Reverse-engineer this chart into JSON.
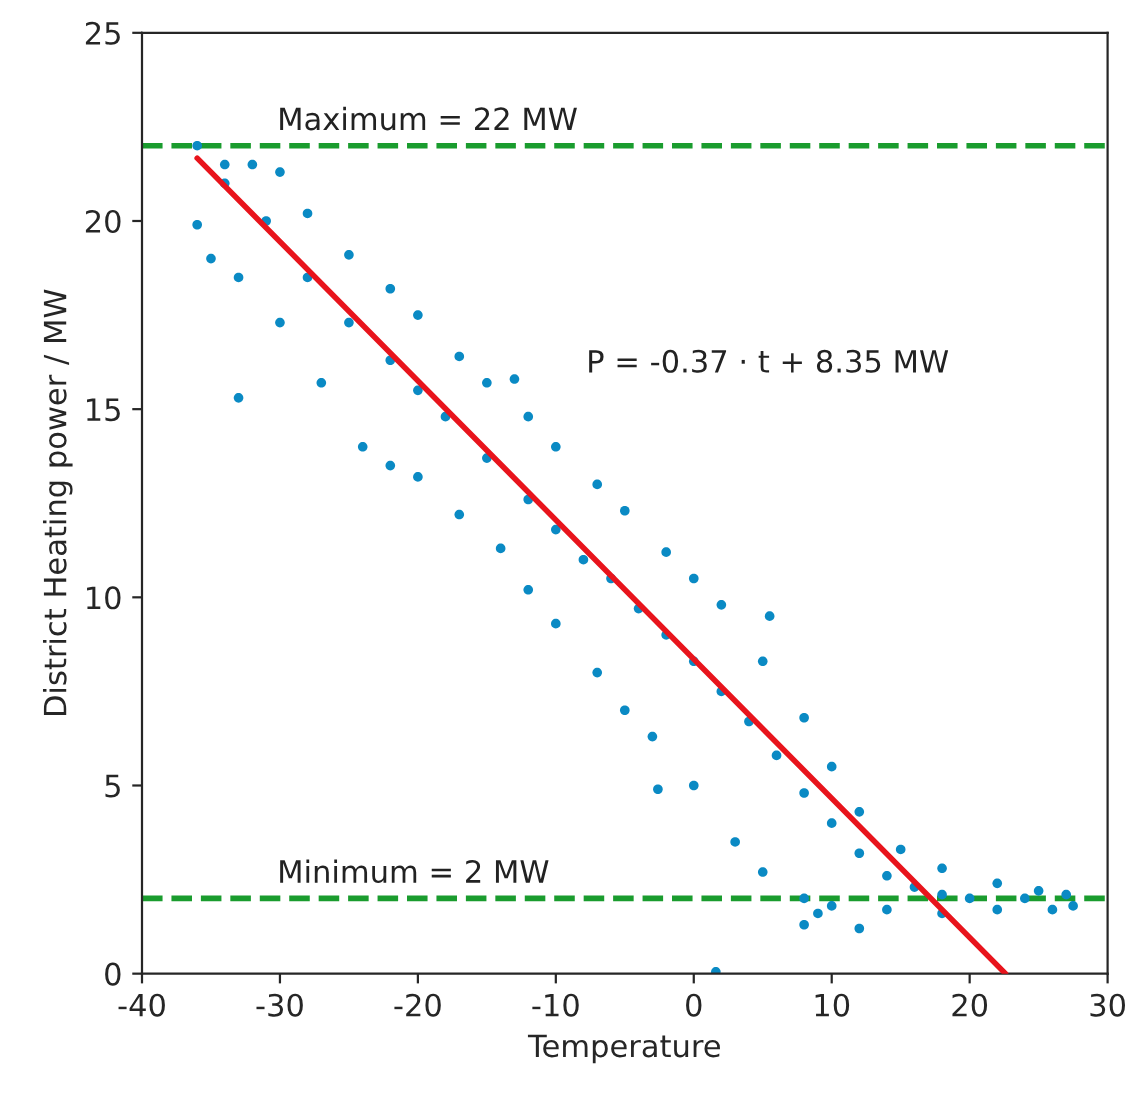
{
  "chart_data": {
    "type": "scatter",
    "xlabel": "Temperature",
    "ylabel": "District Heating power / MW",
    "xlim": [
      -40,
      30
    ],
    "xticks": [
      -40,
      -30,
      -20,
      -10,
      0,
      10,
      20,
      30
    ],
    "ylim": [
      0,
      25
    ],
    "yticks": [
      0,
      5,
      10,
      15,
      20,
      25
    ],
    "grid": false,
    "legend": false,
    "series": [
      {
        "marker": "circle",
        "color": "#0a8ac4",
        "x": [
          -36,
          -34,
          -32,
          -30,
          -28,
          -25,
          -22,
          -20,
          -17,
          -15,
          -12,
          -10,
          -7,
          -5,
          -2,
          0,
          2,
          5,
          8,
          10,
          12,
          15,
          18,
          22,
          25,
          27,
          -36,
          -35,
          -33,
          -30,
          -27,
          -24,
          -20,
          -17,
          -14,
          -12,
          -10,
          -7,
          -5,
          -3,
          0,
          3,
          5,
          8,
          10,
          14,
          18,
          22,
          26,
          27.5,
          -34,
          -31,
          -28,
          -25,
          -22,
          -20,
          -18,
          -15,
          -12,
          -10,
          -8,
          -6,
          -4,
          -2,
          0,
          2,
          4,
          6,
          8,
          10,
          12,
          14,
          16,
          18,
          20,
          24,
          -33,
          -22,
          -2.6,
          8,
          9,
          12,
          1.6,
          -13,
          5.5
        ],
        "values": [
          22,
          21.5,
          21.5,
          21.3,
          20.2,
          19.1,
          18.2,
          17.5,
          16.4,
          15.7,
          14.8,
          14,
          13,
          12.3,
          11.2,
          10.5,
          9.8,
          8.3,
          6.8,
          5.5,
          4.3,
          3.3,
          2.8,
          2.4,
          2.2,
          2.1,
          19.9,
          19,
          18.5,
          17.3,
          15.7,
          14,
          13.2,
          12.2,
          11.3,
          10.2,
          9.3,
          8,
          7,
          6.3,
          5,
          3.5,
          2.7,
          2,
          1.8,
          1.7,
          1.6,
          1.7,
          1.7,
          1.8,
          21,
          20,
          18.5,
          17.3,
          16.3,
          15.5,
          14.8,
          13.7,
          12.6,
          11.8,
          11,
          10.5,
          9.7,
          9,
          8.3,
          7.5,
          6.7,
          5.8,
          4.8,
          4,
          3.2,
          2.6,
          2.3,
          2.1,
          2,
          2,
          15.3,
          13.5,
          4.9,
          1.3,
          1.6,
          1.2,
          0.05,
          15.8,
          9.5
        ]
      },
      {
        "type": "line",
        "color": "#e8141c",
        "x": [
          -36,
          22.6
        ],
        "values": [
          21.67,
          0
        ]
      }
    ],
    "ref_lines": [
      {
        "axis": "y",
        "value": 22,
        "label": "Maximum = 22 MW",
        "color": "#1a9c2e",
        "line_style": "dashed"
      },
      {
        "axis": "y",
        "value": 2,
        "label": "Minimum = 2 MW",
        "color": "#1a9c2e",
        "line_style": "dashed"
      }
    ],
    "annotations": [
      "P = -0.37 · t + 8.35 MW"
    ]
  }
}
